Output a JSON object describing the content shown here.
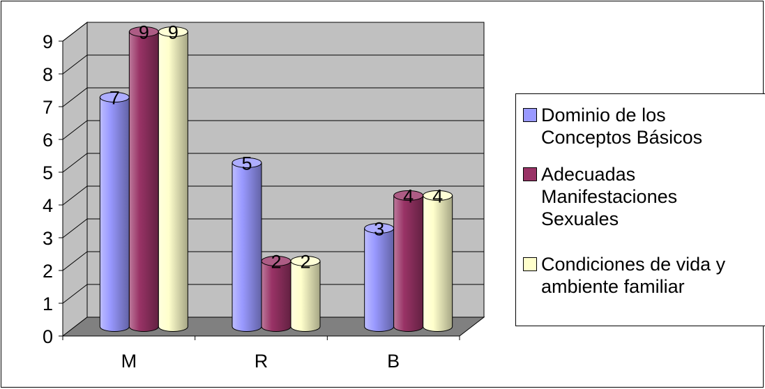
{
  "chart_data": {
    "type": "bar",
    "variant": "3d-cylinder",
    "categories": [
      "M",
      "R",
      "B"
    ],
    "series": [
      {
        "name": "Dominio de los\nConceptos Básicos",
        "values": [
          7,
          5,
          3
        ],
        "color": "#9999ff"
      },
      {
        "name": "Adecuadas\nManifestaciones\nSexuales",
        "values": [
          9,
          2,
          4
        ],
        "color": "#993366"
      },
      {
        "name": "Condiciones de vida y\nambiente familiar",
        "values": [
          9,
          2,
          4
        ],
        "color": "#ffffcc"
      }
    ],
    "y_ticks": [
      "0",
      "1",
      "2",
      "3",
      "4",
      "5",
      "6",
      "7",
      "8",
      "9"
    ],
    "ylim": [
      0,
      9
    ],
    "grid": true,
    "data_labels": true,
    "legend_position": "right",
    "wall_color": "#c0c0c0",
    "floor_color": "#808080"
  }
}
